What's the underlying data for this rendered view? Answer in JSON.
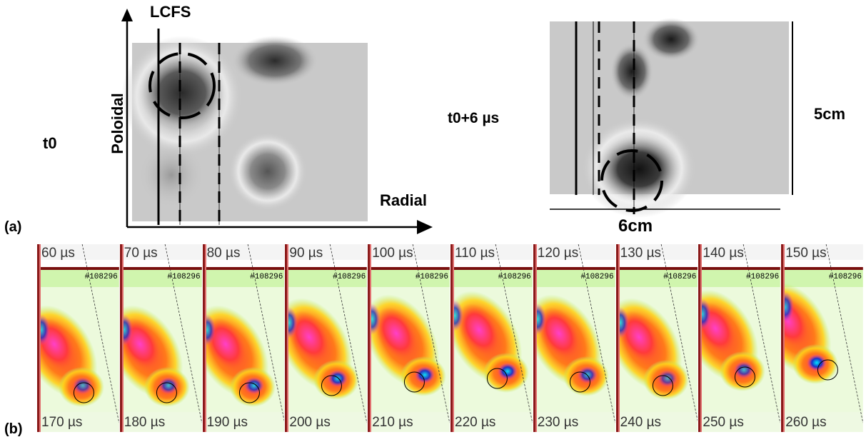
{
  "panel_a": {
    "label": "(a)",
    "left": {
      "time_label": "t0",
      "lcfs_label": "LCFS",
      "y_axis_label": "Poloidal",
      "x_axis_label": "Radial"
    },
    "right": {
      "time_label": "t0+6 µs",
      "height_label": "5cm",
      "width_label": "6cm"
    }
  },
  "panel_b": {
    "label": "(b)",
    "shot": "#108296",
    "frames": [
      {
        "top": "60 µs",
        "bottom": "170 µs"
      },
      {
        "top": "70 µs",
        "bottom": "180 µs"
      },
      {
        "top": "80 µs",
        "bottom": "190 µs"
      },
      {
        "top": "90 µs",
        "bottom": "200 µs"
      },
      {
        "top": "100 µs",
        "bottom": "210 µs"
      },
      {
        "top": "110 µs",
        "bottom": "220 µs"
      },
      {
        "top": "120 µs",
        "bottom": "230 µs"
      },
      {
        "top": "130 µs",
        "bottom": "240 µs"
      },
      {
        "top": "140 µs",
        "bottom": "250 µs"
      },
      {
        "top": "150 µs",
        "bottom": "260 µs"
      }
    ]
  }
}
